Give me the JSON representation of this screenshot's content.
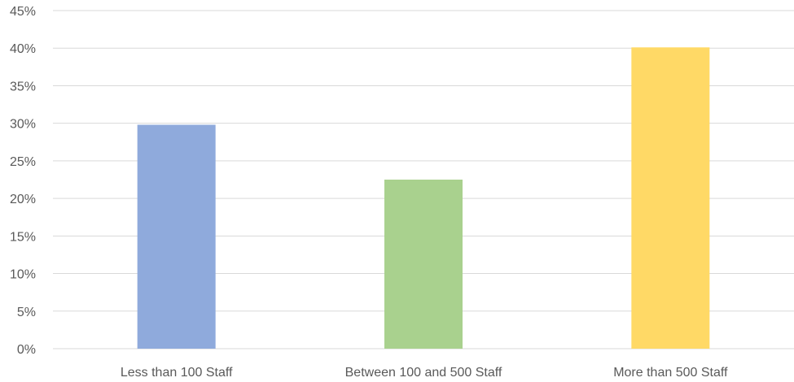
{
  "chart_data": {
    "type": "bar",
    "title": "",
    "xlabel": "",
    "ylabel": "",
    "categories": [
      "Less than 100 Staff",
      "Between 100 and 500 Staff",
      "More than 500 Staff"
    ],
    "values": [
      29.8,
      22.5,
      40.1
    ],
    "value_format": "percent",
    "ylim": [
      0,
      45
    ],
    "y_ticks": [
      0,
      5,
      10,
      15,
      20,
      25,
      30,
      35,
      40,
      45
    ],
    "y_tick_labels": [
      "0%",
      "5%",
      "10%",
      "15%",
      "20%",
      "25%",
      "30%",
      "35%",
      "40%",
      "45%"
    ],
    "bar_colors": [
      "#8faadc",
      "#a9d18e",
      "#ffd966"
    ],
    "gridline_color": "#d9d9d9",
    "grid": true,
    "legend": "none"
  }
}
